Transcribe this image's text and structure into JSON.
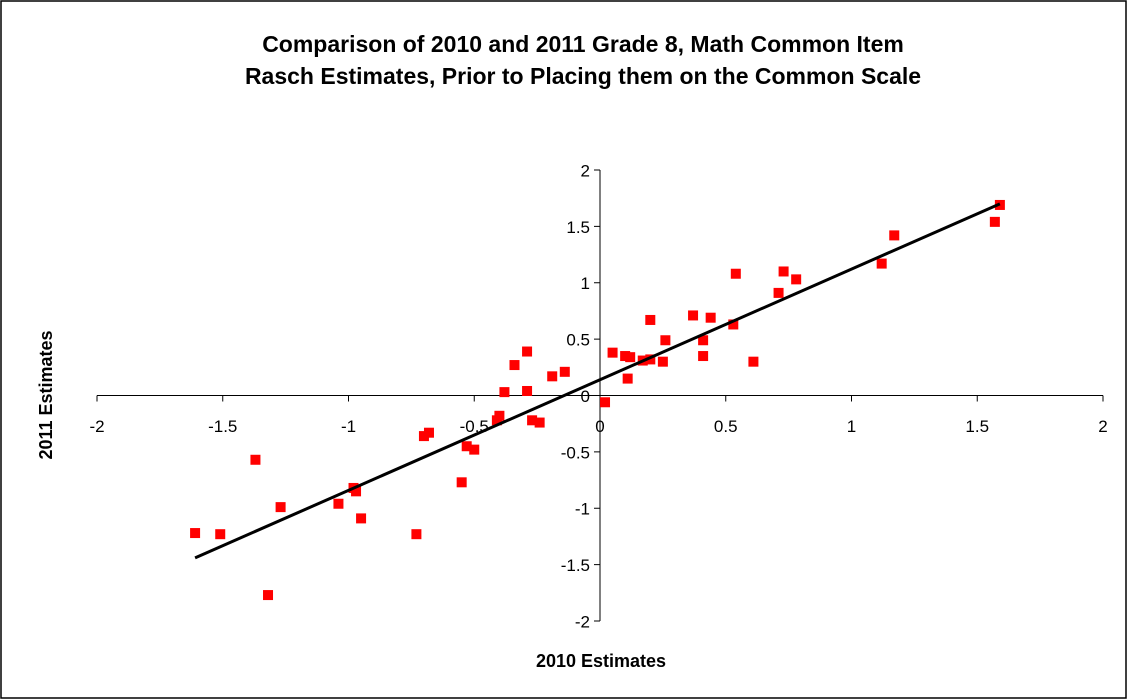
{
  "chart_data": {
    "type": "scatter",
    "title": [
      "Comparison of 2010 and 2011 Grade 8, Math Common Item",
      "Rasch Estimates, Prior to Placing them on the Common Scale"
    ],
    "x_label": "2010 Estimates",
    "y_label": "2011 Estimates",
    "xlim": [
      -2,
      2
    ],
    "ylim": [
      -2,
      2
    ],
    "xticks": [
      -2,
      -1.5,
      -1,
      -0.5,
      0,
      0.5,
      1,
      1.5,
      2
    ],
    "yticks": [
      -2,
      -1.5,
      -1,
      -0.5,
      0,
      0.5,
      1,
      1.5,
      2
    ],
    "color": "#ff0000",
    "x": [
      -1.61,
      -1.51,
      -1.37,
      -1.32,
      -1.27,
      -1.04,
      -0.98,
      -0.97,
      -0.95,
      -0.73,
      -0.7,
      -0.68,
      -0.55,
      -0.53,
      -0.5,
      -0.41,
      -0.4,
      -0.38,
      -0.34,
      -0.29,
      -0.29,
      -0.27,
      -0.24,
      -0.19,
      -0.14,
      0.02,
      0.05,
      0.1,
      0.11,
      0.12,
      0.17,
      0.2,
      0.2,
      0.26,
      0.25,
      0.37,
      0.41,
      0.41,
      0.44,
      0.53,
      0.54,
      0.61,
      0.71,
      0.73,
      0.78,
      1.12,
      1.17,
      1.57,
      1.59
    ],
    "y": [
      -1.22,
      -1.23,
      -0.57,
      -1.77,
      -0.99,
      -0.96,
      -0.82,
      -0.85,
      -1.09,
      -1.23,
      -0.36,
      -0.33,
      -0.77,
      -0.45,
      -0.48,
      -0.22,
      -0.18,
      0.03,
      0.27,
      0.39,
      0.04,
      -0.22,
      -0.24,
      0.17,
      0.21,
      -0.06,
      0.38,
      0.35,
      0.15,
      0.34,
      0.31,
      0.32,
      0.67,
      0.49,
      0.3,
      0.71,
      0.35,
      0.49,
      0.69,
      0.63,
      1.08,
      0.3,
      0.91,
      1.1,
      1.03,
      1.17,
      1.42,
      1.54,
      1.69
    ],
    "trendline": {
      "color": "#000000",
      "x": [
        -1.61,
        1.59
      ],
      "y": [
        -1.44,
        1.7
      ]
    }
  }
}
